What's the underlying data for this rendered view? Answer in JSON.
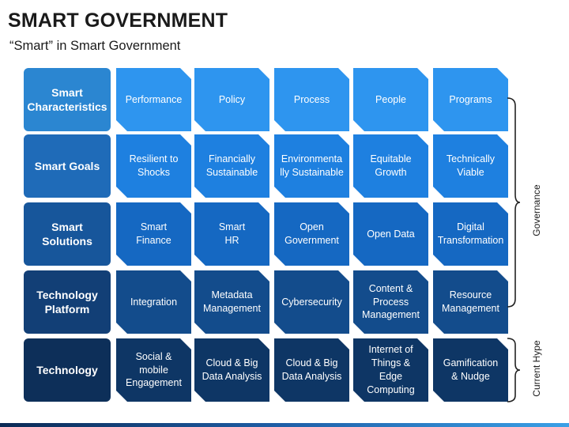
{
  "header": {
    "title": "SMART GOVERNMENT",
    "subtitle": "“Smart” in Smart Government"
  },
  "rows": [
    {
      "label": "Smart\nCharacteristics",
      "label_color": "#2b86d1",
      "cell_color": "#2e95ef",
      "cells": [
        "Performance",
        "Policy",
        "Process",
        "People",
        "Programs"
      ]
    },
    {
      "label": "Smart Goals",
      "label_color": "#1f6bb8",
      "cell_color": "#1e80e0",
      "cells": [
        "Resilient to\nShocks",
        "Financially\nSustainable",
        "Environmenta\nlly Sustainable",
        "Equitable\nGrowth",
        "Technically\nViable"
      ]
    },
    {
      "label": "Smart\nSolutions",
      "label_color": "#17569b",
      "cell_color": "#1568c2",
      "cells": [
        "Smart\nFinance",
        "Smart\nHR",
        "Open\nGovernment",
        "Open Data",
        "Digital\nTransformation"
      ]
    },
    {
      "label": "Technology\nPlatform",
      "label_color": "#123f76",
      "cell_color": "#134c8c",
      "cells": [
        "Integration",
        "Metadata\nManagement",
        "Cybersecurity",
        "Content &\nProcess\nManagement",
        "Resource\nManagement"
      ]
    },
    {
      "label": "Technology",
      "label_color": "#0d2f59",
      "cell_color": "#0e3665",
      "cells": [
        "Social &\nmobile\nEngagement",
        "Cloud & Big\nData Analysis",
        "Cloud & Big\nData Analysis",
        "Internet of\nThings &\nEdge\nComputing",
        "Gamification\n& Nudge"
      ]
    }
  ],
  "side_labels": {
    "governance": "Governance",
    "current_hype": "Current Hype"
  }
}
